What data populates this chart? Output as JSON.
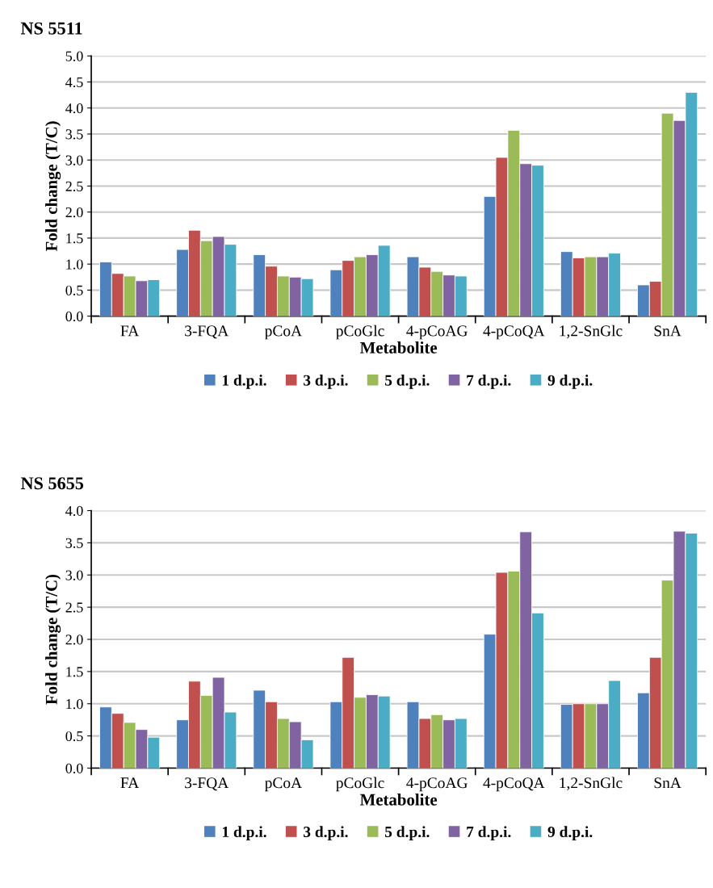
{
  "chart_data": [
    {
      "type": "bar",
      "title": "NS 5511",
      "xlabel": "Metabolite",
      "ylabel": "Fold change (T/C)",
      "categories": [
        "FA",
        "3-FQA",
        "pCoA",
        "pCoGlc",
        "4-pCoAG",
        "4-pCoQA",
        "1,2-SnGlc",
        "SnA"
      ],
      "series": [
        {
          "name": "1 d.p.i.",
          "color": "#4f81bd",
          "values": [
            1.04,
            1.28,
            1.18,
            0.89,
            1.14,
            2.3,
            1.24,
            0.6
          ]
        },
        {
          "name": "3 d.p.i.",
          "color": "#c0504d",
          "values": [
            0.82,
            1.65,
            0.96,
            1.07,
            0.94,
            3.05,
            1.12,
            0.67
          ]
        },
        {
          "name": "5 d.p.i.",
          "color": "#9bbb59",
          "values": [
            0.77,
            1.45,
            0.77,
            1.14,
            0.86,
            3.57,
            1.14,
            3.9
          ]
        },
        {
          "name": "7 d.p.i.",
          "color": "#8064a2",
          "values": [
            0.68,
            1.53,
            0.75,
            1.18,
            0.79,
            2.93,
            1.14,
            3.76
          ]
        },
        {
          "name": "9 d.p.i.",
          "color": "#4bacc6",
          "values": [
            0.7,
            1.38,
            0.72,
            1.36,
            0.77,
            2.9,
            1.21,
            4.3
          ]
        }
      ],
      "ylim": [
        0,
        5
      ],
      "yticks": [
        {
          "value": 0,
          "label": "0.0"
        },
        {
          "value": 0.5,
          "label": "0.5"
        },
        {
          "value": 1,
          "label": "1.0"
        },
        {
          "value": 1.5,
          "label": "1.5"
        },
        {
          "value": 2,
          "label": "2.0"
        },
        {
          "value": 2.5,
          "label": "2.5"
        },
        {
          "value": 3,
          "label": "3.0"
        },
        {
          "value": 3.5,
          "label": "3.5"
        },
        {
          "value": 4,
          "label": "4.0"
        },
        {
          "value": 4.5,
          "label": "4.5"
        },
        {
          "value": 5,
          "label": "5.0"
        }
      ],
      "grid": "y",
      "legend": "bottom"
    },
    {
      "type": "bar",
      "title": "NS 5655",
      "xlabel": "Metabolite",
      "ylabel": "Fold change (T/C)",
      "categories": [
        "FA",
        "3-FQA",
        "pCoA",
        "pCoGlc",
        "4-pCoAG",
        "4-pCoQA",
        "1,2-SnGlc",
        "SnA"
      ],
      "series": [
        {
          "name": "1 d.p.i.",
          "color": "#4f81bd",
          "values": [
            0.95,
            0.75,
            1.21,
            1.03,
            1.03,
            2.08,
            0.99,
            1.17
          ]
        },
        {
          "name": "3 d.p.i.",
          "color": "#c0504d",
          "values": [
            0.85,
            1.35,
            1.03,
            1.72,
            0.77,
            3.04,
            1.0,
            1.72
          ]
        },
        {
          "name": "5 d.p.i.",
          "color": "#9bbb59",
          "values": [
            0.71,
            1.13,
            0.77,
            1.1,
            0.83,
            3.06,
            1.0,
            2.92
          ]
        },
        {
          "name": "7 d.p.i.",
          "color": "#8064a2",
          "values": [
            0.6,
            1.41,
            0.72,
            1.14,
            0.75,
            3.67,
            1.0,
            3.68
          ]
        },
        {
          "name": "9 d.p.i.",
          "color": "#4bacc6",
          "values": [
            0.48,
            0.87,
            0.44,
            1.12,
            0.77,
            2.41,
            1.36,
            3.65
          ]
        }
      ],
      "ylim": [
        0,
        4
      ],
      "yticks": [
        {
          "value": 0,
          "label": "0.0"
        },
        {
          "value": 0.5,
          "label": "0.5"
        },
        {
          "value": 1,
          "label": "1.0"
        },
        {
          "value": 1.5,
          "label": "1.5"
        },
        {
          "value": 2,
          "label": "2.0"
        },
        {
          "value": 2.5,
          "label": "2.5"
        },
        {
          "value": 3,
          "label": "3.0"
        },
        {
          "value": 3.5,
          "label": "3.5"
        },
        {
          "value": 4,
          "label": "4.0"
        }
      ],
      "grid": "y",
      "legend": "bottom"
    }
  ]
}
